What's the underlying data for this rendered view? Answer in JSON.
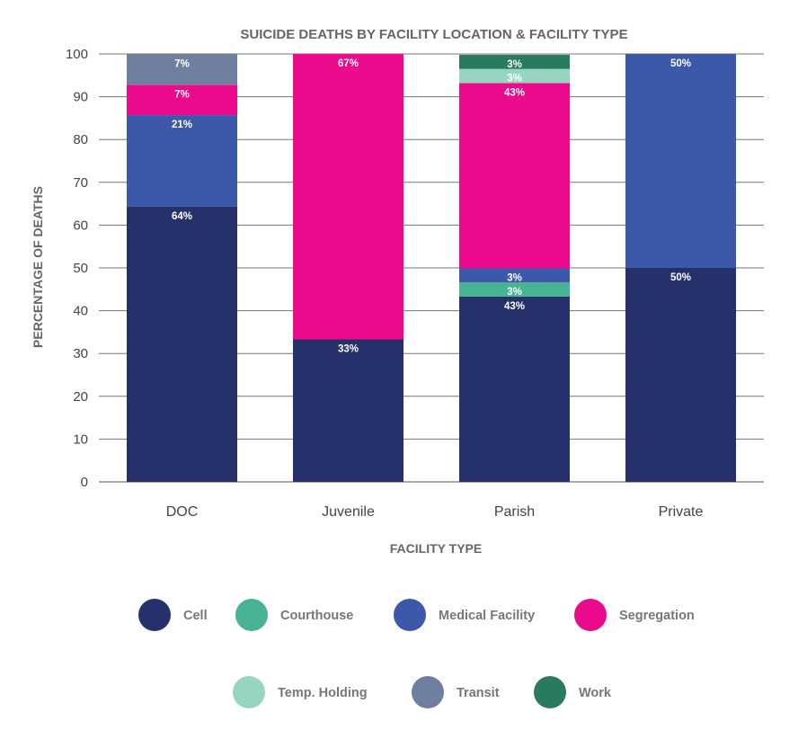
{
  "chart_data": {
    "type": "bar",
    "stacked": true,
    "title": "SUICIDE DEATHS BY FACILITY LOCATION & FACILITY TYPE",
    "xlabel": "FACILITY TYPE",
    "ylabel": "PERCENTAGE OF DEATHS",
    "ylim": [
      0,
      100
    ],
    "yticks": [
      0,
      10,
      20,
      30,
      40,
      50,
      60,
      70,
      80,
      90,
      100
    ],
    "grid": true,
    "legend_position": "bottom",
    "categories": [
      "DOC",
      "Juvenile",
      "Parish",
      "Private"
    ],
    "series": [
      {
        "name": "Cell",
        "color": "#26306a",
        "values": [
          64.3,
          33.3,
          43.3,
          50
        ],
        "labels": [
          "64%",
          "33%",
          "43%",
          "50%"
        ]
      },
      {
        "name": "Courthouse",
        "color": "#47b394",
        "values": [
          0,
          0,
          3.3,
          0
        ],
        "labels": [
          "",
          "",
          "3%",
          ""
        ]
      },
      {
        "name": "Medical Facility",
        "color": "#3c58a8",
        "values": [
          21.4,
          0,
          3.3,
          50
        ],
        "labels": [
          "21%",
          "",
          "3%",
          "50%"
        ]
      },
      {
        "name": "Segregation",
        "color": "#ec0a8c",
        "values": [
          7.1,
          66.7,
          43.3,
          0
        ],
        "labels": [
          "7%",
          "67%",
          "43%",
          ""
        ]
      },
      {
        "name": "Temp. Holding",
        "color": "#97d5c1",
        "values": [
          0,
          0,
          3.3,
          0
        ],
        "labels": [
          "",
          "",
          "3%",
          ""
        ]
      },
      {
        "name": "Transit",
        "color": "#6f7f9f",
        "values": [
          7.1,
          0,
          0,
          0
        ],
        "labels": [
          "7%",
          "",
          "",
          ""
        ]
      },
      {
        "name": "Work",
        "color": "#2a7a5e",
        "values": [
          0,
          0,
          3.3,
          0
        ],
        "labels": [
          "",
          "",
          "3%",
          ""
        ]
      }
    ]
  }
}
